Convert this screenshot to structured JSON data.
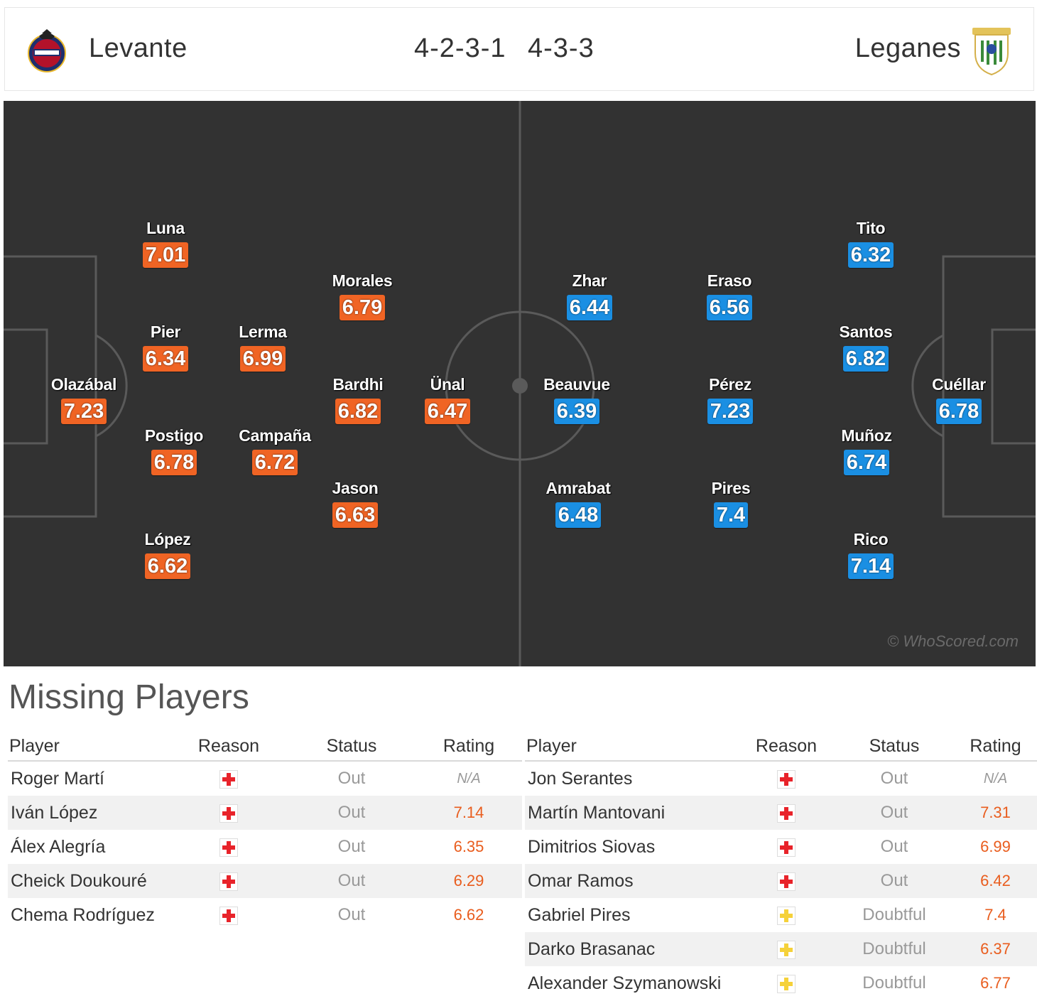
{
  "header": {
    "home_team": "Levante",
    "home_formation": "4-2-3-1",
    "away_formation": "4-3-3",
    "away_team": "Leganes"
  },
  "colors": {
    "home_rating": "#f06424",
    "away_rating": "#1a8fe3",
    "pitch": "#323232",
    "injury_icon": "#e8232a",
    "doubtful_icon": "#f5d13a"
  },
  "pitch": {
    "watermark": "© WhoScored.com",
    "home_players": [
      {
        "name": "Olazábal",
        "rating": "7.23"
      },
      {
        "name": "Luna",
        "rating": "7.01"
      },
      {
        "name": "Pier",
        "rating": "6.34"
      },
      {
        "name": "Postigo",
        "rating": "6.78"
      },
      {
        "name": "López",
        "rating": "6.62"
      },
      {
        "name": "Lerma",
        "rating": "6.99"
      },
      {
        "name": "Campaña",
        "rating": "6.72"
      },
      {
        "name": "Morales",
        "rating": "6.79"
      },
      {
        "name": "Bardhi",
        "rating": "6.82"
      },
      {
        "name": "Jason",
        "rating": "6.63"
      },
      {
        "name": "Ünal",
        "rating": "6.47"
      }
    ],
    "away_players": [
      {
        "name": "Zhar",
        "rating": "6.44"
      },
      {
        "name": "Beauvue",
        "rating": "6.39"
      },
      {
        "name": "Amrabat",
        "rating": "6.48"
      },
      {
        "name": "Eraso",
        "rating": "6.56"
      },
      {
        "name": "Pérez",
        "rating": "7.23"
      },
      {
        "name": "Pires",
        "rating": "7.4"
      },
      {
        "name": "Tito",
        "rating": "6.32"
      },
      {
        "name": "Santos",
        "rating": "6.82"
      },
      {
        "name": "Muñoz",
        "rating": "6.74"
      },
      {
        "name": "Rico",
        "rating": "7.14"
      },
      {
        "name": "Cuéllar",
        "rating": "6.78"
      }
    ]
  },
  "missing": {
    "title": "Missing Players",
    "columns": {
      "player": "Player",
      "reason": "Reason",
      "status": "Status",
      "rating": "Rating"
    },
    "home": [
      {
        "player": "Roger Martí",
        "reason": "injury",
        "status": "Out",
        "rating": "N/A"
      },
      {
        "player": "Iván López",
        "reason": "injury",
        "status": "Out",
        "rating": "7.14"
      },
      {
        "player": "Álex Alegría",
        "reason": "injury",
        "status": "Out",
        "rating": "6.35"
      },
      {
        "player": "Cheick Doukouré",
        "reason": "injury",
        "status": "Out",
        "rating": "6.29"
      },
      {
        "player": "Chema Rodríguez",
        "reason": "injury",
        "status": "Out",
        "rating": "6.62"
      }
    ],
    "away": [
      {
        "player": "Jon Serantes",
        "reason": "injury",
        "status": "Out",
        "rating": "N/A"
      },
      {
        "player": "Martín Mantovani",
        "reason": "injury",
        "status": "Out",
        "rating": "7.31"
      },
      {
        "player": "Dimitrios Siovas",
        "reason": "injury",
        "status": "Out",
        "rating": "6.99"
      },
      {
        "player": "Omar Ramos",
        "reason": "injury",
        "status": "Out",
        "rating": "6.42"
      },
      {
        "player": "Gabriel Pires",
        "reason": "doubtful",
        "status": "Doubtful",
        "rating": "7.4"
      },
      {
        "player": "Darko Brasanac",
        "reason": "doubtful",
        "status": "Doubtful",
        "rating": "6.37"
      },
      {
        "player": "Alexander Szymanowski",
        "reason": "doubtful",
        "status": "Doubtful",
        "rating": "6.77"
      }
    ]
  }
}
